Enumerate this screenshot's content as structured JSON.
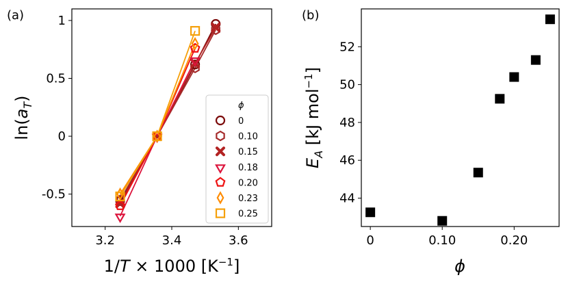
{
  "chart_data": [
    {
      "panel": "(a)",
      "type": "line",
      "xlabel": "1/T × 1000 [K⁻¹]",
      "ylabel": "ln(a_T)",
      "xlim": [
        3.1,
        3.7
      ],
      "ylim": [
        -0.78,
        1.1
      ],
      "xticks": [
        3.2,
        3.4,
        3.6
      ],
      "xtick_labels": [
        "3.2",
        "3.4",
        "3.6"
      ],
      "yticks": [
        -0.5,
        0,
        0.5,
        1
      ],
      "ytick_labels": [
        "-0.5",
        "0",
        "0.5",
        "1"
      ],
      "legend_title": "ϕ",
      "legend_position": "lower-right",
      "series": [
        {
          "name": "0",
          "color": "#7b0a0a",
          "marker": "circle",
          "x": [
            3.245,
            3.356,
            3.47,
            3.532
          ],
          "y": [
            -0.56,
            0,
            0.62,
            0.97
          ]
        },
        {
          "name": "0.10",
          "color": "#a52a2a",
          "marker": "hexagon",
          "x": [
            3.245,
            3.356,
            3.47,
            3.532
          ],
          "y": [
            -0.55,
            0,
            0.59,
            0.92
          ]
        },
        {
          "name": "0.15",
          "color": "#b22222",
          "marker": "x",
          "x": [
            3.245,
            3.356,
            3.47,
            3.532
          ],
          "y": [
            -0.58,
            0,
            0.63,
            0.94
          ]
        },
        {
          "name": "0.18",
          "color": "#dc143c",
          "marker": "triangle-down",
          "x": [
            3.245,
            3.356,
            3.47
          ],
          "y": [
            -0.69,
            0,
            0.66
          ]
        },
        {
          "name": "0.20",
          "color": "#ee1111",
          "marker": "pentagon",
          "x": [
            3.245,
            3.356,
            3.47
          ],
          "y": [
            -0.6,
            0,
            0.76
          ]
        },
        {
          "name": "0.23",
          "color": "#ff8c00",
          "marker": "thin-diamond",
          "x": [
            3.245,
            3.356,
            3.47
          ],
          "y": [
            -0.5,
            0,
            0.8
          ]
        },
        {
          "name": "0.25",
          "color": "#f5a00a",
          "marker": "square",
          "x": [
            3.245,
            3.356,
            3.47
          ],
          "y": [
            -0.52,
            0,
            0.91
          ]
        }
      ]
    },
    {
      "panel": "(b)",
      "type": "scatter",
      "xlabel": "ϕ",
      "ylabel": "E_A [kJ mol⁻¹]",
      "xlim": [
        -0.0125,
        0.2625
      ],
      "ylim": [
        42.5,
        54.0
      ],
      "xticks": [
        0,
        0.1,
        0.2
      ],
      "xtick_labels": [
        "0",
        "0.10",
        "0.20"
      ],
      "yticks": [
        44,
        46,
        48,
        50,
        52
      ],
      "ytick_labels": [
        "44",
        "46",
        "48",
        "50",
        "52"
      ],
      "color": "#000000",
      "marker": "square",
      "x": [
        0,
        0.1,
        0.15,
        0.18,
        0.2,
        0.23,
        0.25
      ],
      "y": [
        43.25,
        42.8,
        45.35,
        49.25,
        50.4,
        51.3,
        53.45
      ]
    }
  ]
}
